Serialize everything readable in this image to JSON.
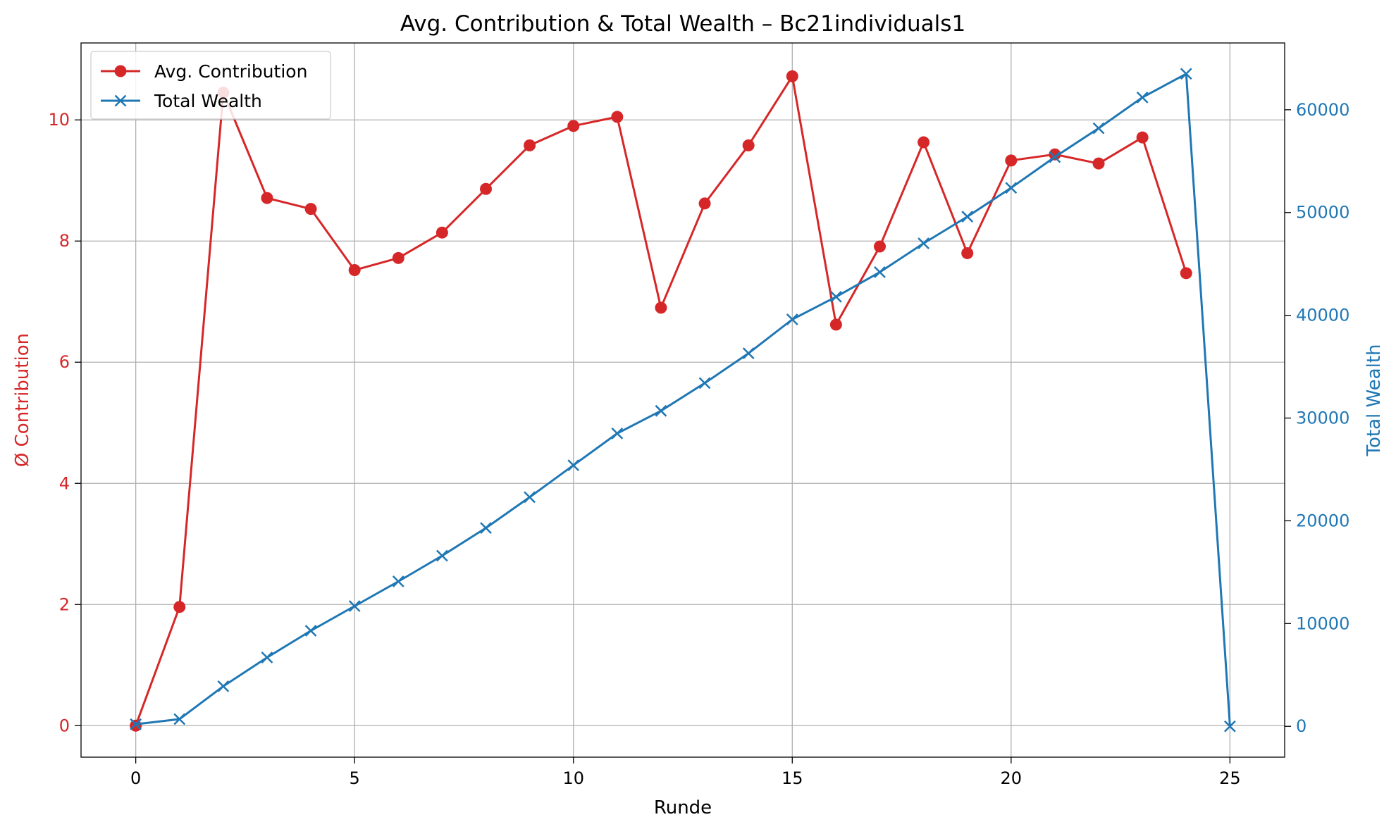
{
  "chart_data": {
    "type": "line",
    "title": "Avg. Contribution & Total Wealth – Bc21individuals1",
    "xlabel": "Runde",
    "ylabel_left": "Ø Contribution",
    "ylabel_right": "Total Wealth",
    "xlim": [
      -1.25,
      26.25
    ],
    "ylim_left": [
      -0.52,
      11.27
    ],
    "ylim_right": [
      -3000,
      66500
    ],
    "x_ticks": [
      0,
      5,
      10,
      15,
      20,
      25
    ],
    "y_left_ticks": [
      0,
      2,
      4,
      6,
      8,
      10
    ],
    "y_right_ticks": [
      0,
      10000,
      20000,
      30000,
      40000,
      50000,
      60000
    ],
    "grid": true,
    "legend_position": "top-left",
    "colors": {
      "left": "#d62728",
      "right": "#1f77b4"
    },
    "series": [
      {
        "name": "Avg. Contribution",
        "axis": "left",
        "marker": "circle",
        "color": "#d62728",
        "x": [
          0,
          1,
          2,
          3,
          4,
          5,
          6,
          7,
          8,
          9,
          10,
          11,
          12,
          13,
          14,
          15,
          16,
          17,
          18,
          19,
          20,
          21,
          22,
          23,
          24
        ],
        "values": [
          0,
          1.96,
          10.45,
          8.71,
          8.53,
          7.52,
          7.72,
          8.14,
          8.86,
          9.58,
          9.9,
          10.05,
          6.9,
          8.62,
          9.58,
          10.72,
          6.62,
          7.91,
          9.63,
          7.8,
          9.33,
          9.43,
          9.28,
          9.71,
          7.47
        ]
      },
      {
        "name": "Total Wealth",
        "axis": "right",
        "marker": "x",
        "color": "#1f77b4",
        "x": [
          0,
          1,
          2,
          3,
          4,
          5,
          6,
          7,
          8,
          9,
          10,
          11,
          12,
          13,
          14,
          15,
          16,
          17,
          18,
          19,
          20,
          21,
          22,
          23,
          24,
          25
        ],
        "values": [
          200,
          700,
          3900,
          6700,
          9300,
          11700,
          14100,
          16600,
          19300,
          22300,
          25400,
          28500,
          30700,
          33400,
          36300,
          39600,
          41800,
          44200,
          47000,
          49600,
          52400,
          55400,
          58200,
          61200,
          63500,
          0
        ]
      }
    ]
  }
}
